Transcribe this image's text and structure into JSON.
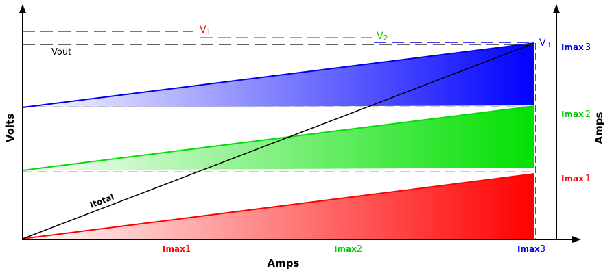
{
  "labels": {
    "y_left": "Volts",
    "y_right": "Amps",
    "x": "Amps",
    "v1": "V",
    "v1_sub": "1",
    "v2": "V",
    "v2_sub": "2",
    "v3": "V",
    "v3_sub": "3",
    "vout": "Vout",
    "itotal": "Itotal",
    "imax_x_1": "Imax",
    "imax_x_1_sub": "1",
    "imax_x_2": "Imax",
    "imax_x_2_sub": "2",
    "imax_x_3": "Imax",
    "imax_x_3_sub": "3",
    "imax_r_3": "Imax",
    "imax_r_3_sub": "3",
    "imax_r_2": "Imax",
    "imax_r_2_sub": "2",
    "imax_r_1": "Imax",
    "imax_r_1_sub": "1"
  },
  "colors": {
    "red": "#ff0000",
    "green": "#00dd00",
    "blue": "#0000ee",
    "black": "#000000",
    "gray_dash": "#bbbbbb"
  }
}
